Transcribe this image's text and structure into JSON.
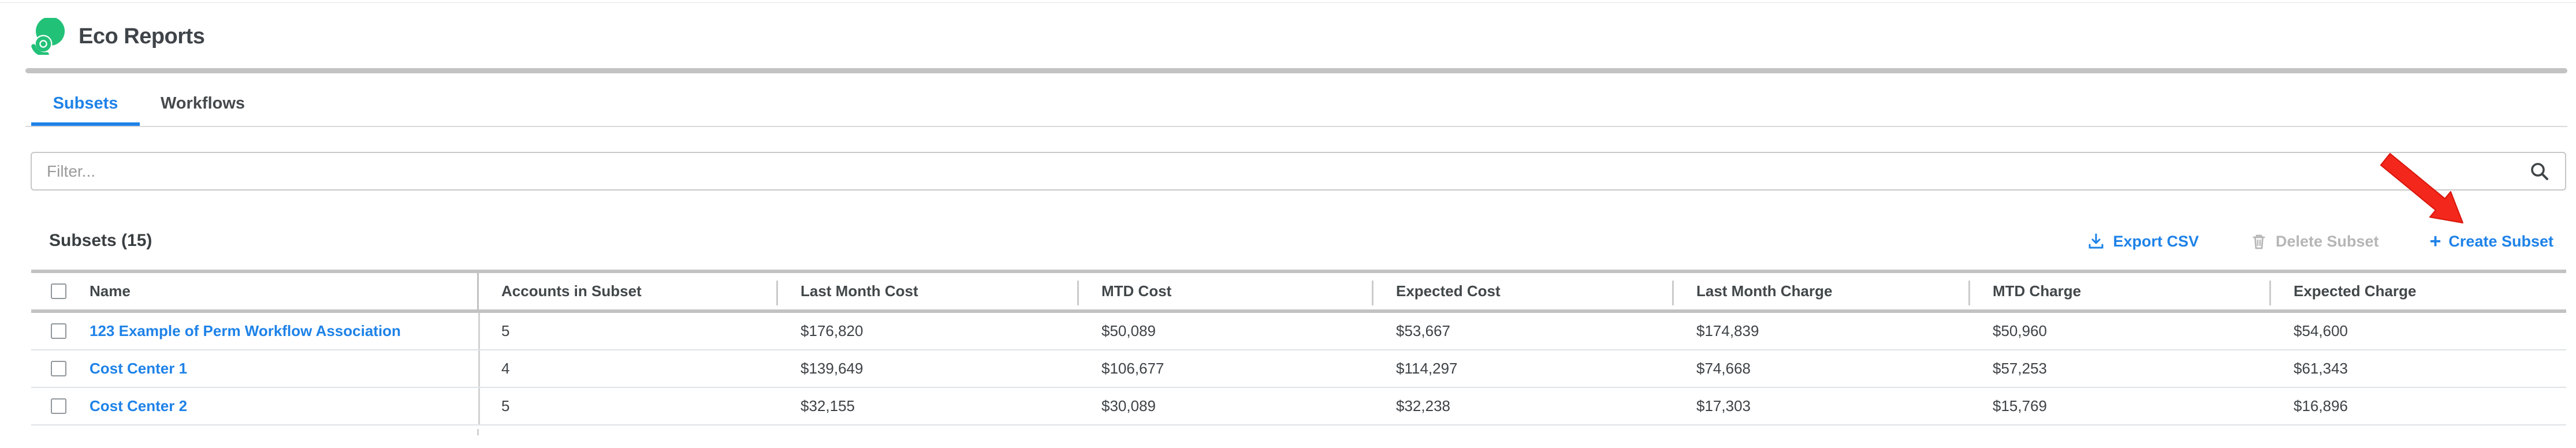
{
  "app": {
    "title": "Eco Reports"
  },
  "tabs": [
    {
      "label": "Subsets",
      "active": true
    },
    {
      "label": "Workflows",
      "active": false
    }
  ],
  "filter": {
    "placeholder": "Filter...",
    "value": ""
  },
  "toolbar": {
    "heading": "Subsets (15)",
    "export_label": "Export CSV",
    "delete_label": "Delete Subset",
    "create_label": "Create Subset",
    "delete_enabled": false
  },
  "icons": {
    "logo": "eco-spiral-logo",
    "search": "magnifier-icon",
    "export": "download-icon",
    "delete": "trash-icon",
    "create": "plus-icon",
    "annotation": "red-arrow-pointing-to-create-subset"
  },
  "table": {
    "columns": [
      "Name",
      "Accounts in Subset",
      "Last Month Cost",
      "MTD Cost",
      "Expected Cost",
      "Last Month Charge",
      "MTD Charge",
      "Expected Charge"
    ],
    "rows": [
      {
        "name": "123 Example of Perm Workflow Association",
        "values": [
          "5",
          "$176,820",
          "$50,089",
          "$53,667",
          "$174,839",
          "$50,960",
          "$54,600"
        ],
        "checked": false
      },
      {
        "name": "Cost Center 1",
        "values": [
          "4",
          "$139,649",
          "$106,677",
          "$114,297",
          "$74,668",
          "$57,253",
          "$61,343"
        ],
        "checked": false
      },
      {
        "name": "Cost Center 2",
        "values": [
          "5",
          "$32,155",
          "$30,089",
          "$32,238",
          "$17,303",
          "$15,769",
          "$16,896"
        ],
        "checked": false
      }
    ]
  },
  "colors": {
    "accent_blue": "#1e82e8",
    "logo_green": "#22c178",
    "arrow_red": "#f3271c",
    "disabled_gray": "#b6b6b6"
  }
}
